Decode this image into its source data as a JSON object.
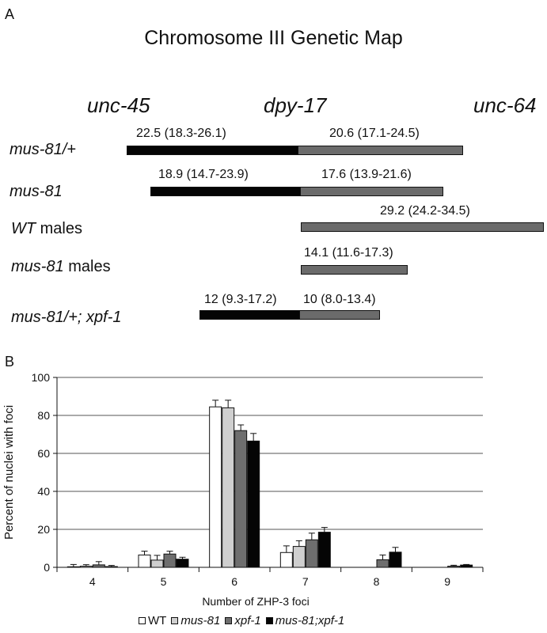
{
  "panel_a": {
    "label": "A",
    "title": "Chromosome III Genetic Map",
    "markers": [
      "unc-45",
      "dpy-17",
      "unc-64"
    ],
    "rows": [
      {
        "name": "mus-81/+",
        "suffix": "",
        "left_interval": "22.5 (18.3-26.1)",
        "right_interval": "20.6 (17.1-24.5)"
      },
      {
        "name": "mus-81",
        "suffix": "",
        "left_interval": "18.9 (14.7-23.9)",
        "right_interval": "17.6 (13.9-21.6)"
      },
      {
        "name": "WT",
        "suffix": " males",
        "left_interval": "",
        "right_interval": "29.2 (24.2-34.5)"
      },
      {
        "name": "mus-81",
        "suffix": " males",
        "left_interval": "",
        "right_interval": "14.1 (11.6-17.3)"
      },
      {
        "name": "mus-81/+; xpf-1",
        "suffix": "",
        "left_interval": "12 (9.3-17.2)",
        "right_interval": "10 (8.0-13.4)"
      }
    ],
    "colors": {
      "left_segment": "#050505",
      "right_segment": "#6b6b6b"
    }
  },
  "panel_b": {
    "label": "B"
  },
  "chart_data": {
    "type": "bar",
    "title": "",
    "xlabel": "Number of ZHP-3 foci",
    "ylabel": "Percent of nuclei with foci",
    "categories": [
      "4",
      "5",
      "6",
      "7",
      "8",
      "9"
    ],
    "ylim": [
      0,
      100
    ],
    "yticks": [
      0,
      20,
      40,
      60,
      80,
      100
    ],
    "grid": true,
    "legend_position": "bottom",
    "series": [
      {
        "name": "WT",
        "color": "#ffffff",
        "values": [
          0.3,
          6.5,
          84.5,
          7.8,
          0,
          0
        ],
        "errors": [
          1.2,
          2,
          3.5,
          3.5,
          0,
          0
        ]
      },
      {
        "name": "mus-81",
        "color": "#cfcfcf",
        "values": [
          0.6,
          3.8,
          84,
          11,
          0,
          0
        ],
        "errors": [
          0.8,
          2.5,
          4,
          3,
          0,
          0
        ]
      },
      {
        "name": "xpf-1",
        "color": "#6e6e6e",
        "values": [
          1.3,
          7,
          72,
          14.5,
          4,
          0.6
        ],
        "errors": [
          1.7,
          1.5,
          3,
          3.5,
          2.5,
          0.5
        ]
      },
      {
        "name": "mus-81;xpf-1",
        "color": "#050505",
        "values": [
          0.4,
          4.3,
          66.5,
          18.5,
          8,
          1.2
        ],
        "errors": [
          0.6,
          1,
          4,
          2.5,
          2.5,
          0.3
        ]
      }
    ]
  }
}
